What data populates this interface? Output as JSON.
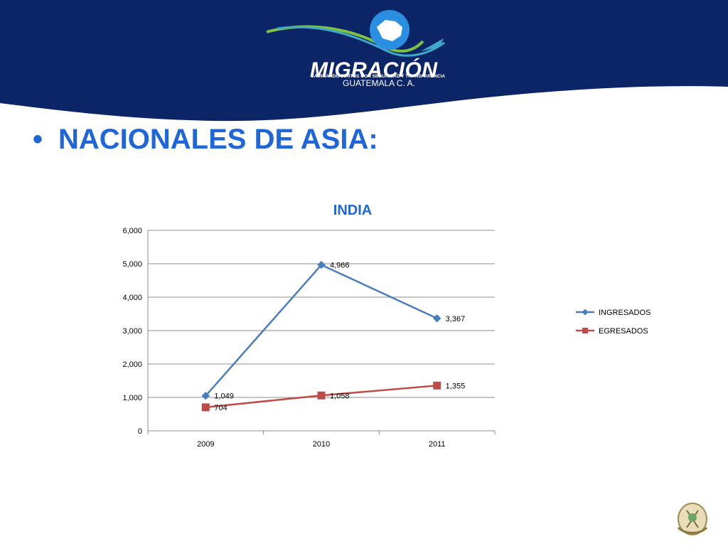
{
  "header": {
    "logo_word": "MIGRACIÓN",
    "logo_tagline": "CAMINANDO JUNTOS CON SEGURIDAD Y TRANSPARENCIA",
    "logo_country": "GUATEMALA C. A.",
    "bg_color": "#0b2566"
  },
  "heading": {
    "bullet": "•",
    "text": "NACIONALES DE ASIA:",
    "color": "#1f66d8"
  },
  "chart_data": {
    "type": "line",
    "title": "INDIA",
    "categories": [
      "2009",
      "2010",
      "2011"
    ],
    "series": [
      {
        "name": "INGRESADOS",
        "values": [
          1049,
          4966,
          3367
        ],
        "labels": [
          "1,049",
          "4,966",
          "3,367"
        ],
        "color": "#4a7ebb",
        "marker": "diamond"
      },
      {
        "name": "EGRESADOS",
        "values": [
          704,
          1058,
          1355
        ],
        "labels": [
          "704",
          "1,058",
          "1,355"
        ],
        "color": "#be4b48",
        "marker": "square"
      }
    ],
    "ylim": [
      0,
      6000
    ],
    "yticks": [
      0,
      1000,
      2000,
      3000,
      4000,
      5000,
      6000
    ],
    "ytick_labels": [
      "0",
      "1,000",
      "2,000",
      "3,000",
      "4,000",
      "5,000",
      "6,000"
    ],
    "grid": true,
    "legend": "right"
  }
}
